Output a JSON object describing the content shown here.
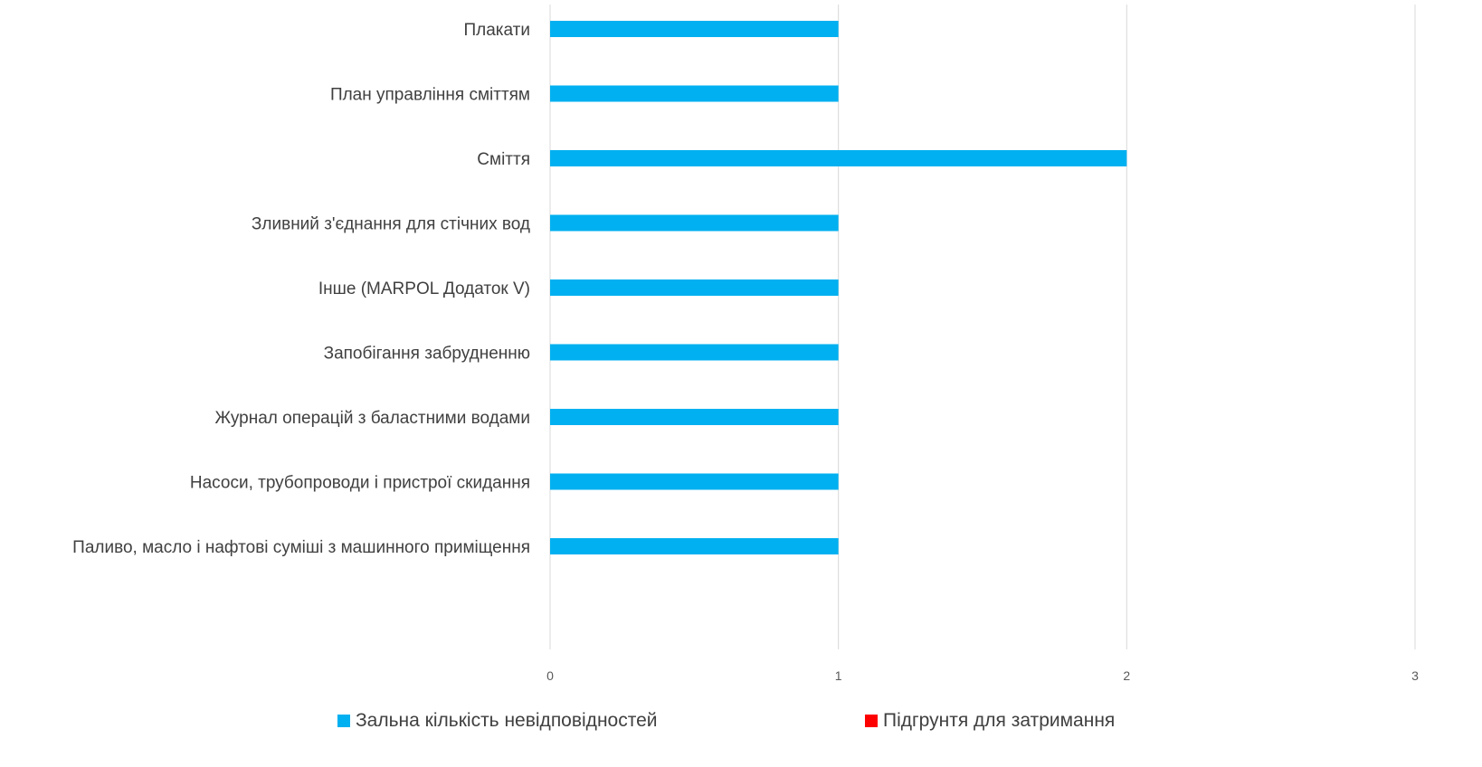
{
  "chart_data": {
    "type": "bar",
    "orientation": "horizontal",
    "title": "",
    "xlabel": "",
    "ylabel": "",
    "categories": [
      "Плакати",
      "План управління сміттям",
      "Сміття",
      "Зливний з'єднання для стічних вод",
      "Інше (MARPOL Додаток V)",
      "Запобігання забрудненню",
      "Журнал операцій з баластними водами",
      "Насоси, трубопроводи і пристрої скидання",
      "Паливо, масло і нафтові суміші з машинного приміщення"
    ],
    "series": [
      {
        "name": "Зальна кількість невідповідностей",
        "color": "#00b0f0",
        "values": [
          1,
          1,
          2,
          1,
          1,
          1,
          1,
          1,
          1
        ]
      },
      {
        "name": "Підгрунтя для затримання",
        "color": "#ff0000",
        "values": [
          0,
          0,
          0,
          0,
          0,
          0,
          0,
          0,
          0
        ]
      }
    ],
    "xlim": [
      0,
      3
    ],
    "xticks": [
      "0",
      "1",
      "2",
      "3"
    ],
    "grid": true,
    "legend_position": "bottom"
  }
}
